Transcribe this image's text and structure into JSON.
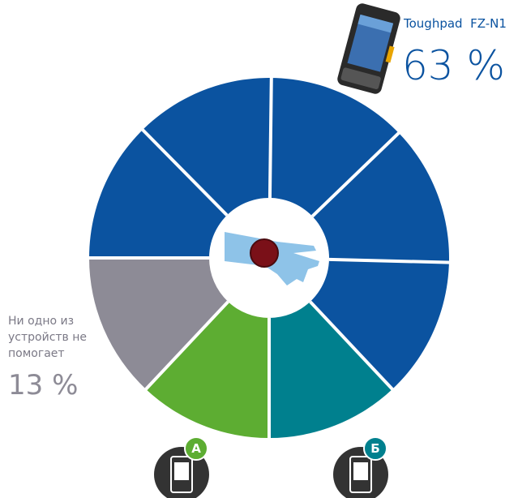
{
  "chart_data": {
    "type": "pie",
    "categories": [
      "Toughpad  FZ-N1",
      "Б",
      "А",
      "Ни одно из устройств не помогает"
    ],
    "values": [
      63,
      12,
      12,
      13
    ],
    "value_labels": [
      "63 %",
      null,
      null,
      "13 %"
    ],
    "colors": [
      "#0b53a0",
      "#00808e",
      "#5dad32",
      "#8d8b96"
    ]
  }
}
